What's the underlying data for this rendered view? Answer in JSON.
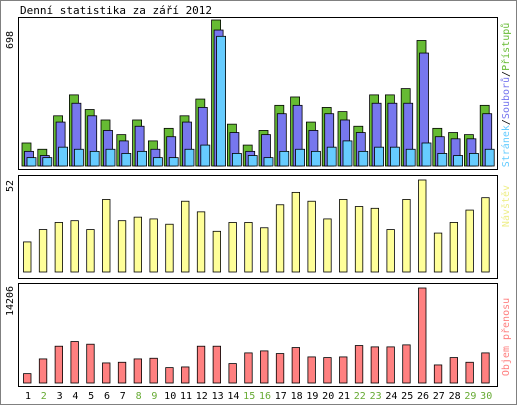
{
  "title": "Denní statistika za září 2012",
  "colors": {
    "frame_border": "#808080",
    "panel_border": "#000000",
    "hits": "#66bb33",
    "files": "#7777ee",
    "pages": "#66ccff",
    "visits": "#ffff99",
    "kbytes": "#ff8080",
    "weekday_label": "#000000",
    "weekend_label": "#66aa33"
  },
  "chart_data": [
    {
      "type": "bar",
      "panel": "hits-files-pages",
      "max_label": "698",
      "ylim": [
        0,
        698
      ],
      "legend": [
        "Stránek",
        "Souborů",
        "Přístupů"
      ],
      "legend_sep": "/",
      "categories": [
        "1",
        "2",
        "3",
        "4",
        "5",
        "6",
        "7",
        "8",
        "9",
        "10",
        "11",
        "12",
        "13",
        "14",
        "15",
        "16",
        "17",
        "18",
        "19",
        "20",
        "21",
        "22",
        "23",
        "24",
        "25",
        "26",
        "27",
        "28",
        "29",
        "30"
      ],
      "weekend": [
        false,
        true,
        false,
        false,
        false,
        false,
        false,
        true,
        true,
        false,
        false,
        false,
        false,
        false,
        true,
        true,
        false,
        false,
        false,
        false,
        false,
        true,
        true,
        false,
        false,
        false,
        false,
        false,
        true,
        true
      ],
      "series": [
        {
          "name": "Přístupů",
          "values": [
            110,
            80,
            240,
            340,
            270,
            220,
            150,
            220,
            120,
            180,
            240,
            320,
            698,
            200,
            100,
            170,
            290,
            330,
            210,
            280,
            260,
            190,
            340,
            340,
            370,
            600,
            180,
            160,
            150,
            290
          ]
        },
        {
          "name": "Souborů",
          "values": [
            70,
            50,
            210,
            300,
            240,
            170,
            120,
            190,
            80,
            140,
            210,
            280,
            650,
            160,
            70,
            150,
            250,
            290,
            170,
            250,
            220,
            160,
            300,
            300,
            300,
            540,
            140,
            130,
            130,
            250
          ]
        },
        {
          "name": "Stránek",
          "values": [
            40,
            40,
            90,
            80,
            70,
            80,
            60,
            70,
            40,
            40,
            80,
            100,
            620,
            60,
            50,
            40,
            70,
            80,
            70,
            90,
            120,
            70,
            90,
            90,
            80,
            110,
            60,
            50,
            60,
            80
          ]
        }
      ]
    },
    {
      "type": "bar",
      "panel": "visits",
      "max_label": "52",
      "ylim": [
        0,
        52
      ],
      "legend": [
        "Návštěv"
      ],
      "categories": [
        "1",
        "2",
        "3",
        "4",
        "5",
        "6",
        "7",
        "8",
        "9",
        "10",
        "11",
        "12",
        "13",
        "14",
        "15",
        "16",
        "17",
        "18",
        "19",
        "20",
        "21",
        "22",
        "23",
        "24",
        "25",
        "26",
        "27",
        "28",
        "29",
        "30"
      ],
      "series": [
        {
          "name": "Návštěv",
          "values": [
            17,
            24,
            28,
            29,
            24,
            41,
            29,
            31,
            30,
            27,
            40,
            34,
            23,
            28,
            28,
            25,
            38,
            45,
            40,
            30,
            41,
            37,
            36,
            24,
            41,
            52,
            22,
            28,
            35,
            42
          ]
        }
      ]
    },
    {
      "type": "bar",
      "panel": "kbytes",
      "max_label": "14206",
      "ylim": [
        0,
        14206
      ],
      "legend": [
        "Objem přenosu"
      ],
      "categories": [
        "1",
        "2",
        "3",
        "4",
        "5",
        "6",
        "7",
        "8",
        "9",
        "10",
        "11",
        "12",
        "13",
        "14",
        "15",
        "16",
        "17",
        "18",
        "19",
        "20",
        "21",
        "22",
        "23",
        "24",
        "25",
        "26",
        "27",
        "28",
        "29",
        "30"
      ],
      "series": [
        {
          "name": "Objem přenosu",
          "values": [
            1400,
            3600,
            5500,
            6200,
            5800,
            3000,
            3100,
            3600,
            3700,
            2300,
            2400,
            5500,
            5500,
            2900,
            4500,
            4800,
            4400,
            5300,
            3900,
            3800,
            3900,
            5600,
            5400,
            5400,
            5700,
            14206,
            2700,
            3800,
            3100,
            4500
          ]
        }
      ]
    }
  ]
}
